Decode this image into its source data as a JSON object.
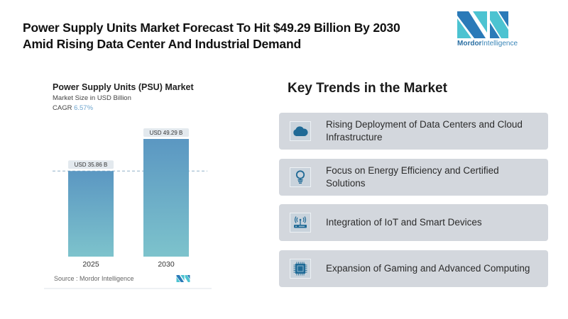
{
  "headline": {
    "line1": "Power Supply Units Market Forecast To Hit $49.29 Billion By 2030",
    "line2": "Amid Rising Data Center And Industrial Demand"
  },
  "brand": {
    "name_bold": "Mordor",
    "name_light": "Intelligence",
    "colors": {
      "dark": "#2a7ab8",
      "light": "#4cc3d1"
    }
  },
  "chart": {
    "title": "Power Supply Units (PSU) Market",
    "subtitle": "Market Size in USD Billion",
    "cagr_label": "CAGR",
    "cagr_value": "6.57%",
    "source": "Source :  Mordor Intelligence"
  },
  "chart_data": {
    "type": "bar",
    "title": "Power Supply Units (PSU) Market",
    "ylabel": "Market Size in USD Billion",
    "xlabel": "",
    "categories": [
      "2025",
      "2030"
    ],
    "values": [
      35.86,
      49.29
    ],
    "data_labels": [
      "USD 35.86 B",
      "USD 49.29 B"
    ],
    "ylim": [
      0,
      49.29
    ],
    "grid": false,
    "reference_line": {
      "value": 35.86,
      "style": "dashed"
    },
    "annotations": [
      "CAGR 6.57%"
    ],
    "colors": {
      "bar_top": "#5b97c2",
      "bar_bottom": "#7dc3cc",
      "label_bg": "#e3e9ee"
    }
  },
  "trends": {
    "title": "Key Trends in the Market",
    "items": [
      {
        "icon": "cloud-icon",
        "label": "Rising Deployment of Data Centers and Cloud Infrastructure"
      },
      {
        "icon": "lightbulb-icon",
        "label": "Focus on Energy Efficiency and Certified Solutions"
      },
      {
        "icon": "iot-router-icon",
        "label": "Integration of IoT and Smart Devices"
      },
      {
        "icon": "processor-chip-icon",
        "label": "Expansion of Gaming and Advanced Computing"
      }
    ],
    "icon_color": "#1f6a96"
  }
}
